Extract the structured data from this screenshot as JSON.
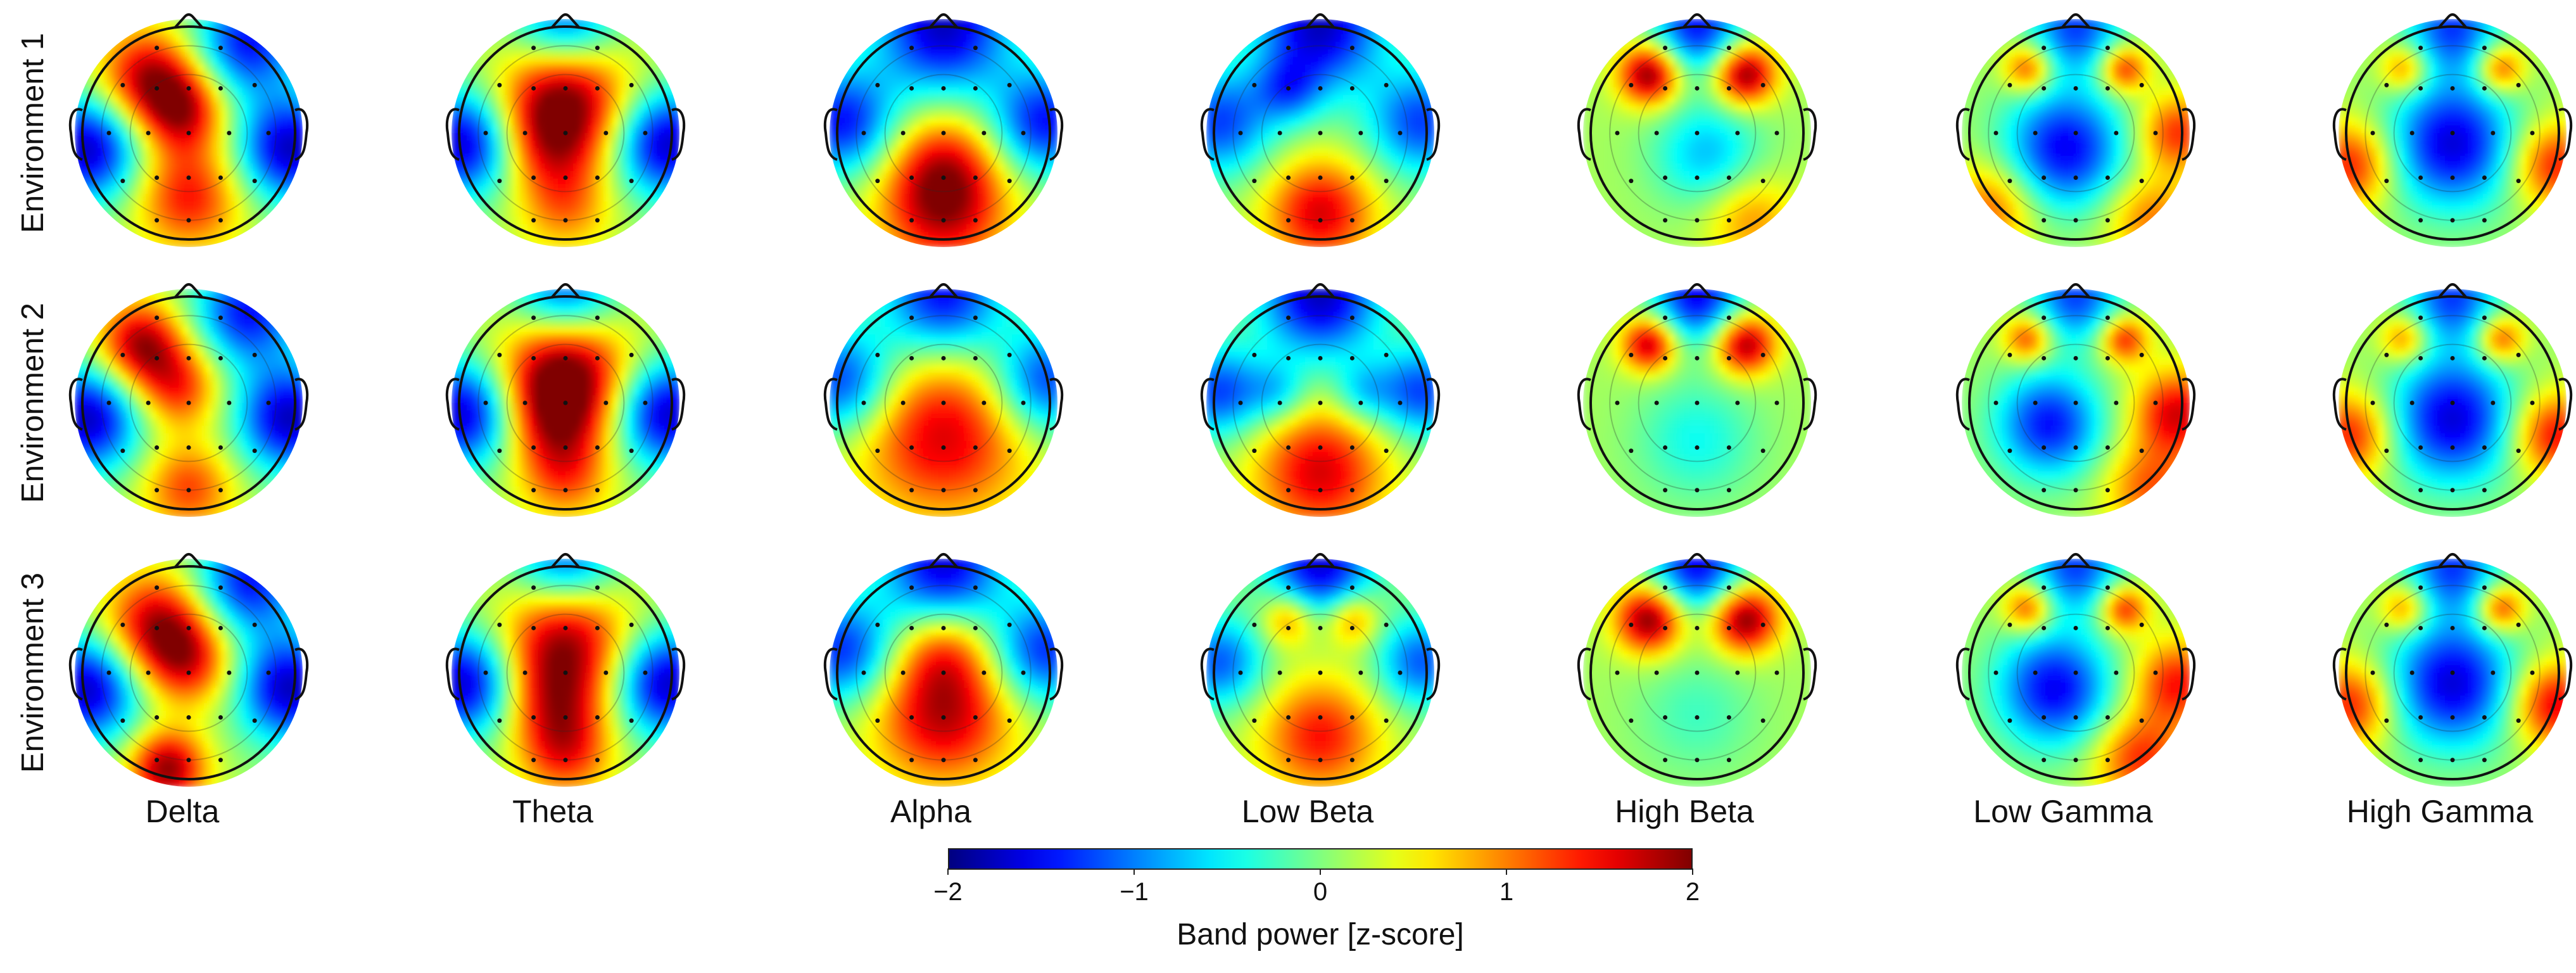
{
  "chart_data": {
    "type": "heatmap",
    "subtype": "eeg-topographic-maps",
    "rows": [
      "Environment 1",
      "Environment 2",
      "Environment 3"
    ],
    "columns": [
      "Delta",
      "Theta",
      "Alpha",
      "Low Beta",
      "High Beta",
      "Low Gamma",
      "High Gamma"
    ],
    "colormap": "jet",
    "colorbar": {
      "label": "Band power [z-score]",
      "range": [
        -2,
        2
      ],
      "ticks": [
        -2,
        -1,
        0,
        1,
        2
      ],
      "tick_labels": [
        "−2",
        "−1",
        "0",
        "1",
        "2"
      ],
      "orientation": "horizontal",
      "placement": "bottom-center"
    },
    "maps": [
      {
        "row": "Environment 1",
        "maps": {
          "Delta": [
            {
              "x": -0.38,
              "y": 0.52,
              "v": 1.6,
              "s": 0.32
            },
            {
              "x": -0.05,
              "y": 0.2,
              "v": 1.4,
              "s": 0.28
            },
            {
              "x": 0.0,
              "y": -0.6,
              "v": 1.3,
              "s": 0.35
            },
            {
              "x": -0.95,
              "y": -0.15,
              "v": -1.9,
              "s": 0.35
            },
            {
              "x": 0.95,
              "y": -0.15,
              "v": -1.9,
              "s": 0.35
            },
            {
              "x": 0.55,
              "y": 0.85,
              "v": -1.6,
              "s": 0.35
            }
          ],
          "Theta": [
            {
              "x": 0.0,
              "y": 0.4,
              "v": 1.8,
              "s": 0.42
            },
            {
              "x": -0.15,
              "y": -0.1,
              "v": 1.1,
              "s": 0.35
            },
            {
              "x": 0.0,
              "y": -0.7,
              "v": 0.8,
              "s": 0.3
            },
            {
              "x": -0.95,
              "y": -0.1,
              "v": -1.9,
              "s": 0.35
            },
            {
              "x": 0.95,
              "y": -0.1,
              "v": -1.9,
              "s": 0.35
            },
            {
              "x": 0.0,
              "y": 1.0,
              "v": -1.6,
              "s": 0.35
            }
          ],
          "Alpha": [
            {
              "x": 0.0,
              "y": -0.7,
              "v": 1.6,
              "s": 0.42
            },
            {
              "x": 0.0,
              "y": -0.25,
              "v": 0.8,
              "s": 0.35
            },
            {
              "x": 0.0,
              "y": 1.0,
              "v": -1.9,
              "s": 0.45
            },
            {
              "x": -0.95,
              "y": 0.1,
              "v": -1.6,
              "s": 0.35
            },
            {
              "x": 0.95,
              "y": 0.1,
              "v": -1.6,
              "s": 0.35
            }
          ],
          "Low Beta": [
            {
              "x": 0.0,
              "y": -0.75,
              "v": 1.5,
              "s": 0.35
            },
            {
              "x": 0.0,
              "y": 1.0,
              "v": -1.9,
              "s": 0.42
            },
            {
              "x": -0.95,
              "y": 0.1,
              "v": -1.4,
              "s": 0.35
            },
            {
              "x": 0.95,
              "y": 0.1,
              "v": -1.4,
              "s": 0.35
            },
            {
              "x": -0.3,
              "y": 0.4,
              "v": -0.9,
              "s": 0.22
            }
          ],
          "High Beta": [
            {
              "x": -0.45,
              "y": 0.55,
              "v": 1.9,
              "s": 0.2
            },
            {
              "x": 0.45,
              "y": 0.55,
              "v": 1.9,
              "s": 0.2
            },
            {
              "x": 0.1,
              "y": -0.2,
              "v": -0.9,
              "s": 0.35
            },
            {
              "x": 0.0,
              "y": 1.0,
              "v": -1.6,
              "s": 0.3
            },
            {
              "x": 0.5,
              "y": -0.8,
              "v": 0.8,
              "s": 0.3
            }
          ],
          "Low Gamma": [
            {
              "x": -0.45,
              "y": 0.6,
              "v": 1.2,
              "s": 0.16
            },
            {
              "x": 0.45,
              "y": 0.6,
              "v": 1.3,
              "s": 0.16
            },
            {
              "x": -0.1,
              "y": -0.15,
              "v": -1.7,
              "s": 0.4
            },
            {
              "x": 0.0,
              "y": 1.0,
              "v": -1.4,
              "s": 0.3
            },
            {
              "x": 0.95,
              "y": 0.0,
              "v": 1.2,
              "s": 0.25
            },
            {
              "x": -0.8,
              "y": -0.7,
              "v": 1.0,
              "s": 0.3
            },
            {
              "x": 0.7,
              "y": -0.8,
              "v": 0.9,
              "s": 0.3
            }
          ],
          "High Gamma": [
            {
              "x": -0.45,
              "y": 0.6,
              "v": 1.0,
              "s": 0.16
            },
            {
              "x": 0.45,
              "y": 0.6,
              "v": 1.2,
              "s": 0.16
            },
            {
              "x": 0.0,
              "y": -0.1,
              "v": -1.8,
              "s": 0.42
            },
            {
              "x": 0.0,
              "y": 1.0,
              "v": -1.4,
              "s": 0.3
            },
            {
              "x": -0.95,
              "y": -0.3,
              "v": 1.3,
              "s": 0.28
            },
            {
              "x": 0.95,
              "y": -0.3,
              "v": 1.3,
              "s": 0.28
            }
          ]
        }
      },
      {
        "row": "Environment 2",
        "maps": {
          "Delta": [
            {
              "x": -0.45,
              "y": 0.55,
              "v": 1.7,
              "s": 0.28
            },
            {
              "x": -0.1,
              "y": 0.15,
              "v": 1.2,
              "s": 0.28
            },
            {
              "x": 0.0,
              "y": -0.8,
              "v": 1.1,
              "s": 0.3
            },
            {
              "x": -0.95,
              "y": -0.15,
              "v": -1.9,
              "s": 0.35
            },
            {
              "x": 0.95,
              "y": -0.15,
              "v": -1.9,
              "s": 0.35
            },
            {
              "x": 0.55,
              "y": 0.85,
              "v": -1.6,
              "s": 0.35
            }
          ],
          "Theta": [
            {
              "x": 0.0,
              "y": 0.35,
              "v": 1.9,
              "s": 0.42
            },
            {
              "x": -0.1,
              "y": -0.15,
              "v": 1.2,
              "s": 0.35
            },
            {
              "x": 0.0,
              "y": -0.7,
              "v": 0.9,
              "s": 0.3
            },
            {
              "x": -0.95,
              "y": -0.1,
              "v": -1.9,
              "s": 0.35
            },
            {
              "x": 0.95,
              "y": -0.1,
              "v": -1.9,
              "s": 0.35
            },
            {
              "x": 0.0,
              "y": 1.0,
              "v": -1.6,
              "s": 0.35
            }
          ],
          "Alpha": [
            {
              "x": 0.0,
              "y": -0.3,
              "v": 1.5,
              "s": 0.55
            },
            {
              "x": 0.0,
              "y": 1.0,
              "v": -1.7,
              "s": 0.4
            },
            {
              "x": -0.95,
              "y": 0.2,
              "v": -1.5,
              "s": 0.35
            },
            {
              "x": 0.95,
              "y": 0.2,
              "v": -1.5,
              "s": 0.35
            }
          ],
          "Low Beta": [
            {
              "x": 0.0,
              "y": -0.65,
              "v": 1.5,
              "s": 0.42
            },
            {
              "x": 0.0,
              "y": 1.0,
              "v": -1.9,
              "s": 0.4
            },
            {
              "x": -0.95,
              "y": 0.1,
              "v": -1.4,
              "s": 0.3
            },
            {
              "x": 0.95,
              "y": 0.1,
              "v": -1.4,
              "s": 0.3
            },
            {
              "x": -0.4,
              "y": 0.1,
              "v": -0.7,
              "s": 0.2
            },
            {
              "x": 0.4,
              "y": 0.1,
              "v": -0.7,
              "s": 0.2
            }
          ],
          "High Beta": [
            {
              "x": -0.45,
              "y": 0.55,
              "v": 1.7,
              "s": 0.18
            },
            {
              "x": 0.45,
              "y": 0.55,
              "v": 1.8,
              "s": 0.2
            },
            {
              "x": 0.0,
              "y": -0.35,
              "v": -0.6,
              "s": 0.4
            },
            {
              "x": 0.0,
              "y": 1.0,
              "v": -1.7,
              "s": 0.3
            }
          ],
          "Low Gamma": [
            {
              "x": -0.45,
              "y": 0.6,
              "v": 1.2,
              "s": 0.16
            },
            {
              "x": 0.45,
              "y": 0.6,
              "v": 1.3,
              "s": 0.16
            },
            {
              "x": -0.25,
              "y": -0.2,
              "v": -1.6,
              "s": 0.35
            },
            {
              "x": 0.0,
              "y": 1.0,
              "v": -1.4,
              "s": 0.3
            },
            {
              "x": 0.95,
              "y": -0.1,
              "v": 1.5,
              "s": 0.28
            },
            {
              "x": 0.7,
              "y": -0.8,
              "v": 1.0,
              "s": 0.3
            }
          ],
          "High Gamma": [
            {
              "x": -0.45,
              "y": 0.6,
              "v": 1.0,
              "s": 0.16
            },
            {
              "x": 0.45,
              "y": 0.6,
              "v": 1.2,
              "s": 0.16
            },
            {
              "x": 0.0,
              "y": -0.15,
              "v": -1.8,
              "s": 0.42
            },
            {
              "x": 0.0,
              "y": 1.0,
              "v": -1.4,
              "s": 0.3
            },
            {
              "x": -0.95,
              "y": -0.3,
              "v": 1.3,
              "s": 0.28
            },
            {
              "x": 0.95,
              "y": -0.3,
              "v": 1.4,
              "s": 0.28
            }
          ]
        }
      },
      {
        "row": "Environment 3",
        "maps": {
          "Delta": [
            {
              "x": -0.3,
              "y": 0.45,
              "v": 1.6,
              "s": 0.34
            },
            {
              "x": 0.0,
              "y": 0.1,
              "v": 1.2,
              "s": 0.3
            },
            {
              "x": -0.2,
              "y": -0.9,
              "v": 1.8,
              "s": 0.25
            },
            {
              "x": -0.95,
              "y": -0.15,
              "v": -1.9,
              "s": 0.35
            },
            {
              "x": 0.95,
              "y": -0.15,
              "v": -1.9,
              "s": 0.35
            },
            {
              "x": 0.55,
              "y": 0.85,
              "v": -1.6,
              "s": 0.35
            }
          ],
          "Theta": [
            {
              "x": 0.0,
              "y": 0.4,
              "v": 1.7,
              "s": 0.42
            },
            {
              "x": -0.1,
              "y": -0.25,
              "v": 1.2,
              "s": 0.35
            },
            {
              "x": 0.0,
              "y": -0.75,
              "v": 1.1,
              "s": 0.3
            },
            {
              "x": -0.95,
              "y": -0.1,
              "v": -1.9,
              "s": 0.35
            },
            {
              "x": 0.95,
              "y": -0.1,
              "v": -1.9,
              "s": 0.35
            },
            {
              "x": 0.0,
              "y": 1.0,
              "v": -1.6,
              "s": 0.35
            }
          ],
          "Alpha": [
            {
              "x": 0.0,
              "y": -0.4,
              "v": 1.6,
              "s": 0.45
            },
            {
              "x": 0.0,
              "y": 0.2,
              "v": 0.8,
              "s": 0.3
            },
            {
              "x": 0.0,
              "y": 1.0,
              "v": -1.8,
              "s": 0.4
            },
            {
              "x": -0.95,
              "y": 0.2,
              "v": -1.5,
              "s": 0.35
            },
            {
              "x": 0.95,
              "y": 0.2,
              "v": -1.5,
              "s": 0.35
            }
          ],
          "Low Beta": [
            {
              "x": -0.3,
              "y": 0.5,
              "v": 1.0,
              "s": 0.18
            },
            {
              "x": 0.3,
              "y": 0.5,
              "v": 1.0,
              "s": 0.18
            },
            {
              "x": 0.0,
              "y": -0.6,
              "v": 1.3,
              "s": 0.38
            },
            {
              "x": 0.0,
              "y": 1.0,
              "v": -1.8,
              "s": 0.35
            },
            {
              "x": -0.95,
              "y": 0.1,
              "v": -1.3,
              "s": 0.3
            },
            {
              "x": 0.95,
              "y": 0.1,
              "v": -1.3,
              "s": 0.3
            }
          ],
          "High Beta": [
            {
              "x": -0.45,
              "y": 0.5,
              "v": 1.9,
              "s": 0.22
            },
            {
              "x": 0.45,
              "y": 0.5,
              "v": 1.9,
              "s": 0.22
            },
            {
              "x": 0.0,
              "y": -0.4,
              "v": -0.4,
              "s": 0.4
            },
            {
              "x": 0.0,
              "y": 1.0,
              "v": -1.7,
              "s": 0.3
            }
          ],
          "Low Gamma": [
            {
              "x": -0.45,
              "y": 0.6,
              "v": 1.2,
              "s": 0.16
            },
            {
              "x": 0.45,
              "y": 0.6,
              "v": 1.3,
              "s": 0.16
            },
            {
              "x": -0.2,
              "y": -0.15,
              "v": -1.7,
              "s": 0.38
            },
            {
              "x": 0.0,
              "y": 1.0,
              "v": -1.4,
              "s": 0.3
            },
            {
              "x": 0.95,
              "y": -0.1,
              "v": 1.3,
              "s": 0.28
            },
            {
              "x": 0.6,
              "y": -0.8,
              "v": 1.2,
              "s": 0.3
            }
          ],
          "High Gamma": [
            {
              "x": -0.45,
              "y": 0.6,
              "v": 1.0,
              "s": 0.16
            },
            {
              "x": 0.45,
              "y": 0.6,
              "v": 1.3,
              "s": 0.16
            },
            {
              "x": 0.0,
              "y": -0.1,
              "v": -1.8,
              "s": 0.42
            },
            {
              "x": 0.0,
              "y": 1.0,
              "v": -1.4,
              "s": 0.3
            },
            {
              "x": -0.95,
              "y": -0.3,
              "v": 1.3,
              "s": 0.28
            },
            {
              "x": 0.95,
              "y": -0.3,
              "v": 1.5,
              "s": 0.28
            }
          ]
        }
      }
    ]
  }
}
